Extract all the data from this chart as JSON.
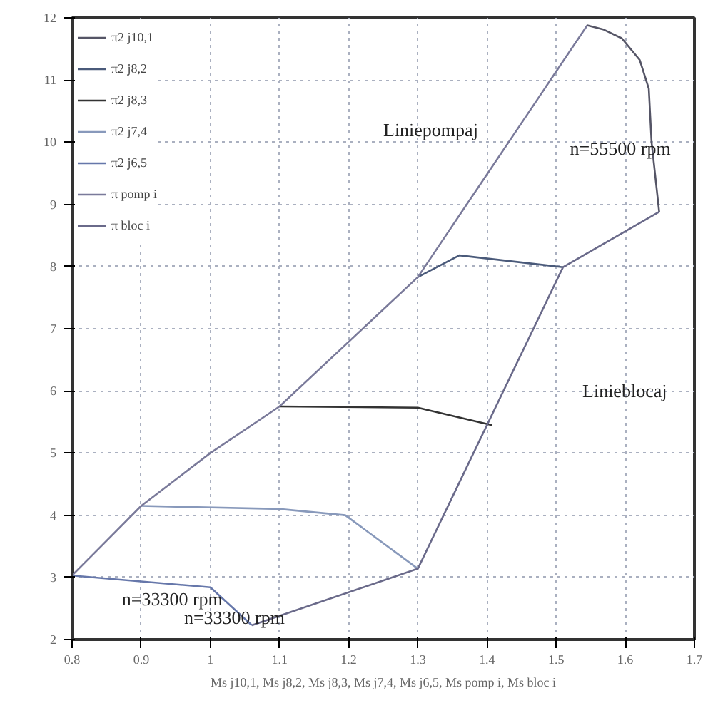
{
  "chart_data": {
    "type": "line",
    "xlabel": "Ms j10,1, Ms j8,2, Ms j8,3, Ms j7,4, Ms j6,5, Ms pomp i, Ms bloc i",
    "xlim": [
      0.8,
      1.7
    ],
    "xticks": [
      0.8,
      0.9,
      1,
      1.1,
      1.2,
      1.3,
      1.4,
      1.5,
      1.6,
      1.7
    ],
    "ylim": [
      2,
      12
    ],
    "yticks": [
      2,
      3,
      4,
      5,
      6,
      7,
      8,
      9,
      10,
      11,
      12
    ],
    "grid": true,
    "legend": "top left",
    "line_style": "solid",
    "marker": "none",
    "series": [
      {
        "name": "π2 j10,1",
        "color": "#555566",
        "x": [
          1.545,
          1.569,
          1.595,
          1.621,
          1.634,
          1.638,
          1.649
        ],
        "values": [
          11.88,
          11.81,
          11.67,
          11.32,
          10.86,
          10.0,
          8.88
        ]
      },
      {
        "name": "π2 j8,2",
        "color": "#4a5a7a",
        "x": [
          1.3,
          1.36,
          1.51
        ],
        "values": [
          7.83,
          8.18,
          7.99
        ]
      },
      {
        "name": "π2 j8,3",
        "color": "#333333",
        "x": [
          1.1,
          1.3,
          1.407
        ],
        "values": [
          5.75,
          5.73,
          5.45
        ]
      },
      {
        "name": "π2 j7,4",
        "color": "#8899bb",
        "x": [
          0.9,
          1.1,
          1.195,
          1.3
        ],
        "values": [
          4.15,
          4.1,
          4.0,
          3.14
        ]
      },
      {
        "name": "π2 j6,5",
        "color": "#6677aa",
        "x": [
          0.8,
          1.0,
          1.06
        ],
        "values": [
          3.03,
          2.84,
          2.23
        ]
      },
      {
        "name": "π pomp i",
        "color": "#7a7a9a",
        "x": [
          0.8,
          0.9,
          1.0,
          1.1,
          1.3,
          1.545
        ],
        "values": [
          3.03,
          4.15,
          5.0,
          5.75,
          7.83,
          11.88
        ]
      },
      {
        "name": "π bloc i",
        "color": "#6a6a8a",
        "x": [
          1.06,
          1.3,
          1.4,
          1.51,
          1.649
        ],
        "values": [
          2.23,
          3.14,
          5.45,
          7.99,
          8.88
        ]
      }
    ],
    "annotations": [
      "Liniepompaj",
      "n=55500 rpm",
      "Linieblocaj",
      "n=33300 rpm",
      "n=33300 rpm"
    ]
  }
}
